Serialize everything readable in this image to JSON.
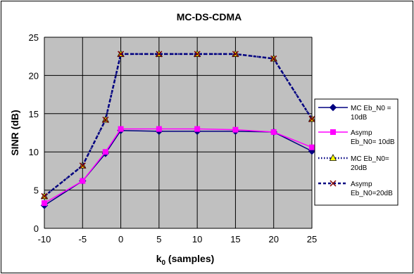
{
  "chart_data": {
    "type": "line",
    "title": "MC-DS-CDMA",
    "xlabel_main": "k",
    "xlabel_sub": "0",
    "xlabel_rest": " (samples)",
    "ylabel": "SINR (dB)",
    "xlim": [
      -10,
      25
    ],
    "ylim": [
      0,
      25
    ],
    "xticks": [
      -10,
      -5,
      0,
      5,
      10,
      15,
      20,
      25
    ],
    "yticks": [
      0,
      5,
      10,
      15,
      20,
      25
    ],
    "grid": true,
    "legend_position": "right",
    "colors": {
      "plot_background": "#c0c0c0",
      "chart_border": "#000000",
      "series1": "#000080",
      "series2": "#ff00ff",
      "series3": "#000080",
      "series4": "#000080",
      "marker3_fill": "#ffff00",
      "marker4_color": "#800000"
    },
    "series": [
      {
        "name_lines": [
          "MC Eb_N0 =",
          "10dB"
        ],
        "marker": "diamond",
        "line_style": "solid",
        "x": [
          -10,
          -5,
          -2,
          0,
          5,
          10,
          15,
          20,
          25
        ],
        "y": [
          3.0,
          6.2,
          9.8,
          12.8,
          12.7,
          12.7,
          12.7,
          12.6,
          10.1
        ]
      },
      {
        "name_lines": [
          "Asymp",
          "Eb_N0= 10dB"
        ],
        "marker": "square",
        "line_style": "solid",
        "x": [
          -10,
          -5,
          -2,
          0,
          5,
          10,
          15,
          20,
          25
        ],
        "y": [
          3.3,
          6.2,
          10.0,
          13.0,
          13.0,
          13.0,
          12.9,
          12.6,
          10.6
        ]
      },
      {
        "name_lines": [
          "MC Eb_N0=",
          "20dB"
        ],
        "marker": "triangle",
        "line_style": "dotted",
        "x": [
          -10,
          -5,
          -2,
          0,
          5,
          10,
          15,
          20,
          25
        ],
        "y": [
          4.2,
          8.2,
          14.2,
          22.8,
          22.8,
          22.8,
          22.8,
          22.2,
          14.3
        ]
      },
      {
        "name_lines": [
          "Asymp",
          "Eb_N0=20dB"
        ],
        "marker": "x",
        "line_style": "dashed",
        "x": [
          -10,
          -5,
          -2,
          0,
          5,
          10,
          15,
          20,
          25
        ],
        "y": [
          4.2,
          8.2,
          14.2,
          22.8,
          22.8,
          22.8,
          22.8,
          22.2,
          14.3
        ]
      }
    ]
  }
}
